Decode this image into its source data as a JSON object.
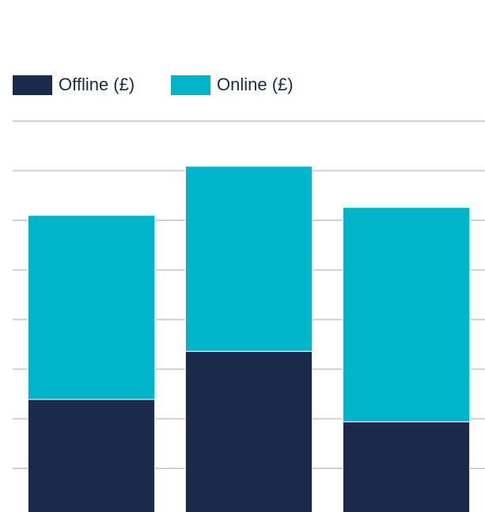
{
  "chart_data": {
    "type": "stacked_bar",
    "categories": [
      null,
      null,
      null
    ],
    "series": [
      {
        "name": "Offline (£)",
        "color": "#1b2a4a",
        "values": [
          2.39,
          3.36,
          1.94
        ]
      },
      {
        "name": "Online (£)",
        "color": "#00b5c9",
        "values": [
          3.71,
          3.73,
          4.32
        ]
      }
    ],
    "ylim": [
      0,
      8
    ],
    "yticks": [
      1,
      2,
      3,
      4,
      5,
      6,
      7,
      8
    ],
    "grid": true
  }
}
